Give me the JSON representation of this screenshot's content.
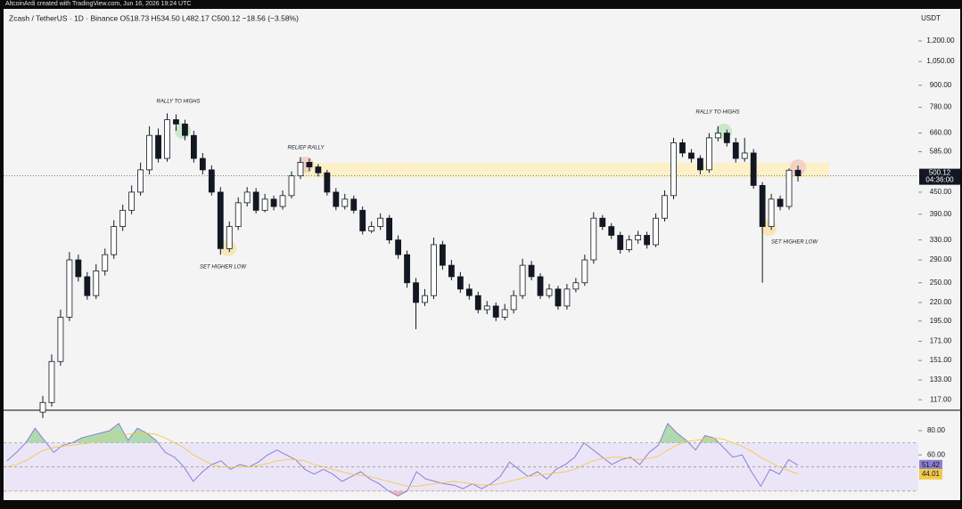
{
  "attribution": "AltcoinArdi created with TradingView.com, Jun 16, 2026 19:24 UTC",
  "chart_data": [
    {
      "type": "candlestick",
      "title": "Zcash / TetherUS · 1D · Binance  O518.73 H534.50 L482.17 C500.12 −18.56 (−3.58%)",
      "unit": "USDT",
      "open": [
        108,
        115,
        150,
        200,
        290,
        260,
        230,
        270,
        300,
        360,
        400,
        450,
        520,
        650,
        560,
        720,
        700,
        650,
        560,
        520,
        450,
        312,
        360,
        420,
        450,
        400,
        430,
        410,
        440,
        500,
        546,
        530,
        510,
        450,
        410,
        430,
        400,
        350,
        360,
        380,
        330,
        300,
        250,
        220,
        230,
        320,
        280,
        260,
        240,
        230,
        210,
        215,
        200,
        210,
        230,
        280,
        260,
        230,
        240,
        215,
        240,
        250,
        290,
        380,
        360,
        340,
        310,
        330,
        340,
        320,
        380,
        440,
        620,
        580,
        560,
        520,
        640,
        660,
        620,
        560,
        580,
        470,
        360,
        430,
        410,
        518.73
      ],
      "high": [
        120,
        157,
        210,
        305,
        300,
        268,
        282,
        312,
        375,
        415,
        470,
        545,
        690,
        680,
        750,
        745,
        720,
        670,
        580,
        535,
        465,
        372,
        435,
        465,
        462,
        445,
        440,
        455,
        515,
        565,
        560,
        540,
        520,
        462,
        445,
        440,
        410,
        372,
        392,
        388,
        340,
        308,
        258,
        240,
        335,
        328,
        290,
        268,
        248,
        236,
        222,
        220,
        218,
        238,
        292,
        288,
        266,
        248,
        245,
        248,
        258,
        300,
        395,
        388,
        368,
        348,
        340,
        350,
        348,
        392,
        455,
        640,
        635,
        595,
        572,
        660,
        690,
        675,
        640,
        640,
        595,
        480,
        445,
        440,
        525,
        534.5
      ],
      "low": [
        104,
        112,
        146,
        195,
        252,
        224,
        225,
        262,
        292,
        350,
        390,
        440,
        505,
        545,
        548,
        670,
        630,
        545,
        505,
        440,
        300,
        305,
        352,
        410,
        392,
        395,
        400,
        402,
        432,
        490,
        515,
        498,
        440,
        400,
        402,
        392,
        342,
        345,
        352,
        322,
        292,
        242,
        185,
        215,
        225,
        272,
        254,
        234,
        224,
        205,
        204,
        195,
        196,
        205,
        225,
        254,
        225,
        226,
        210,
        210,
        235,
        245,
        283,
        352,
        332,
        302,
        305,
        322,
        312,
        315,
        372,
        430,
        565,
        545,
        505,
        510,
        625,
        605,
        545,
        548,
        460,
        250,
        352,
        400,
        402,
        482.17
      ],
      "close": [
        115,
        150,
        200,
        290,
        260,
        230,
        270,
        300,
        360,
        400,
        450,
        520,
        650,
        560,
        720,
        700,
        650,
        560,
        520,
        450,
        312,
        360,
        420,
        450,
        400,
        430,
        410,
        440,
        500,
        546,
        530,
        510,
        450,
        410,
        430,
        400,
        350,
        360,
        380,
        330,
        300,
        250,
        220,
        230,
        320,
        280,
        260,
        240,
        230,
        210,
        215,
        200,
        210,
        230,
        280,
        260,
        230,
        240,
        215,
        240,
        250,
        290,
        380,
        360,
        340,
        310,
        330,
        340,
        320,
        380,
        440,
        620,
        580,
        560,
        520,
        640,
        660,
        620,
        560,
        580,
        470,
        360,
        430,
        410,
        518.73,
        500.12
      ],
      "up_color": "#ffffff",
      "down_color": "#131722",
      "log_scale": true,
      "ylim": [
        110,
        1460
      ],
      "yticks": [
        {
          "value": 1200,
          "label": "1,200.00"
        },
        {
          "value": 1050,
          "label": "1,050.00"
        },
        {
          "value": 900,
          "label": "900.00"
        },
        {
          "value": 780,
          "label": "780.00"
        },
        {
          "value": 660,
          "label": "660.00"
        },
        {
          "value": 585,
          "label": "585.00"
        },
        {
          "value": 450,
          "label": "450.00"
        },
        {
          "value": 390,
          "label": "390.00"
        },
        {
          "value": 330,
          "label": "330.00"
        },
        {
          "value": 290,
          "label": "290.00"
        },
        {
          "value": 250,
          "label": "250.00"
        },
        {
          "value": 220,
          "label": "220.00"
        },
        {
          "value": 195,
          "label": "195.00"
        },
        {
          "value": 171,
          "label": "171.00"
        },
        {
          "value": 151,
          "label": "151.00"
        },
        {
          "value": 133,
          "label": "133.00"
        },
        {
          "value": 117,
          "label": "117.00"
        }
      ],
      "zone": [
        495,
        545
      ],
      "zone_color": "#fbefc0",
      "countdown": "04:36:00",
      "annotations": [
        "RALLY TO HIGHS",
        "RELIEF RALLY",
        "SET HIGHER LOW",
        "RALLY TO HIGHS",
        "SET HIGHER LOW"
      ]
    },
    {
      "type": "line",
      "ylim": [
        24,
        94
      ],
      "yticks": [
        {
          "value": 80,
          "label": "80.00"
        },
        {
          "value": 60,
          "label": "60.00"
        }
      ],
      "levels": [
        30,
        50,
        70
      ],
      "band_color": "#ebe6f7",
      "series": [
        {
          "color": "#8c7fd0",
          "values": [
            55,
            62,
            70,
            82,
            72,
            62,
            68,
            70,
            74,
            76,
            78,
            80,
            86,
            72,
            82,
            78,
            72,
            62,
            58,
            50,
            38,
            46,
            52,
            55,
            48,
            52,
            50,
            54,
            60,
            64,
            60,
            56,
            48,
            44,
            48,
            44,
            38,
            42,
            46,
            40,
            36,
            30,
            26,
            30,
            46,
            40,
            38,
            36,
            35,
            32,
            36,
            32,
            36,
            42,
            54,
            48,
            42,
            46,
            40,
            48,
            52,
            58,
            70,
            64,
            58,
            52,
            56,
            58,
            52,
            62,
            68,
            86,
            78,
            72,
            64,
            76,
            74,
            66,
            58,
            60,
            46,
            34,
            48,
            44,
            56,
            51.42
          ]
        },
        {
          "color": "#f2c94c",
          "values": [
            50,
            52,
            55,
            60,
            64,
            66,
            67,
            68,
            69,
            70,
            72,
            74,
            76,
            77,
            78,
            78,
            77,
            74,
            70,
            66,
            60,
            56,
            52,
            50,
            50,
            50,
            50,
            51,
            53,
            55,
            56,
            56,
            55,
            52,
            50,
            48,
            46,
            44,
            43,
            42,
            40,
            38,
            36,
            34,
            34,
            35,
            36,
            37,
            38,
            37,
            36,
            35,
            35,
            36,
            38,
            40,
            42,
            43,
            44,
            45,
            46,
            48,
            52,
            55,
            57,
            58,
            58,
            57,
            56,
            57,
            59,
            64,
            68,
            71,
            72,
            73,
            74,
            73,
            70,
            67,
            63,
            58,
            54,
            50,
            47,
            44.01
          ]
        }
      ]
    }
  ]
}
